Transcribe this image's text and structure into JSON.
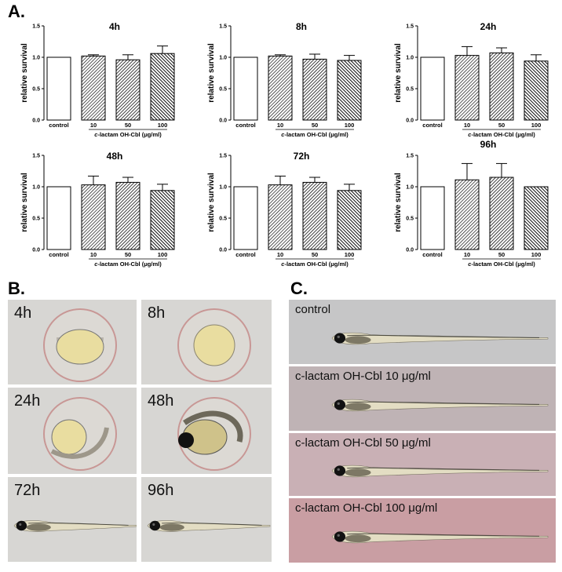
{
  "panels": {
    "a": "A.",
    "b": "B.",
    "c": "C."
  },
  "chart_data": [
    {
      "type": "bar",
      "title": "4h",
      "categories": [
        "control",
        "10",
        "50",
        "100"
      ],
      "values": [
        1.0,
        1.02,
        0.96,
        1.06
      ],
      "errors": [
        0,
        0.02,
        0.08,
        0.12
      ],
      "ylabel": "relative survival",
      "xlabel": "c-lactam OH-Cbl (μg/ml)",
      "xlabel_prefix": "c",
      "xlabel_rest": "-lactam OH-Cbl (μg/ml)",
      "ylim": [
        0.0,
        1.5
      ],
      "yticks": [
        "0.0",
        "0.5",
        "1.0",
        "1.5"
      ]
    },
    {
      "type": "bar",
      "title": "8h",
      "categories": [
        "control",
        "10",
        "50",
        "100"
      ],
      "values": [
        1.0,
        1.02,
        0.97,
        0.95
      ],
      "errors": [
        0,
        0.02,
        0.08,
        0.08
      ],
      "ylabel": "relative survival",
      "xlabel": "c-lactam OH-Cbl (μg/ml)",
      "xlabel_prefix": "c",
      "xlabel_rest": "-lactam OH-Cbl (μg/ml)",
      "ylim": [
        0.0,
        1.5
      ],
      "yticks": [
        "0.0",
        "0.5",
        "1.0",
        "1.5"
      ]
    },
    {
      "type": "bar",
      "title": "24h",
      "categories": [
        "control",
        "10",
        "50",
        "100"
      ],
      "values": [
        1.0,
        1.03,
        1.07,
        0.94
      ],
      "errors": [
        0,
        0.14,
        0.08,
        0.1
      ],
      "ylabel": "relative survival",
      "xlabel": "c-lactam OH-Cbl (μg/ml)",
      "xlabel_prefix": "c",
      "xlabel_rest": "-lactam OH-Cbl (μg/ml)",
      "ylim": [
        0.0,
        1.5
      ],
      "yticks": [
        "0.0",
        "0.5",
        "1.0",
        "1.5"
      ]
    },
    {
      "type": "bar",
      "title": "48h",
      "categories": [
        "control",
        "10",
        "50",
        "100"
      ],
      "values": [
        1.0,
        1.03,
        1.07,
        0.94
      ],
      "errors": [
        0,
        0.14,
        0.08,
        0.1
      ],
      "ylabel": "relative survival",
      "xlabel": "c-lactam OH-Cbl (μg/ml)",
      "xlabel_prefix": "c",
      "xlabel_rest": "-lactam OH-Cbl (μg/ml)",
      "ylim": [
        0.0,
        1.5
      ],
      "yticks": [
        "0.0",
        "0.5",
        "1.0",
        "1.5"
      ]
    },
    {
      "type": "bar",
      "title": "72h",
      "categories": [
        "control",
        "10",
        "50",
        "100"
      ],
      "values": [
        1.0,
        1.03,
        1.07,
        0.94
      ],
      "errors": [
        0,
        0.14,
        0.08,
        0.1
      ],
      "ylabel": "relative survival",
      "xlabel": "c-lactam OH-Cbl (μg/ml)",
      "xlabel_prefix": "c",
      "xlabel_rest": "-lactam OH-Cbl (μg/ml)",
      "ylim": [
        0.0,
        1.5
      ],
      "yticks": [
        "0.0",
        "0.5",
        "1.0",
        "1.5"
      ]
    },
    {
      "type": "bar",
      "title": "96h",
      "categories": [
        "control",
        "10",
        "50",
        "100"
      ],
      "values": [
        1.0,
        1.11,
        1.15,
        1.0
      ],
      "errors": [
        0,
        0.26,
        0.22,
        0
      ],
      "ylabel": "relative survival",
      "xlabel": "c-lactam OH-Cbl (μg/ml)",
      "xlabel_prefix": "c",
      "xlabel_rest": "-lactam OH-Cbl (μg/ml)",
      "ylim": [
        0.0,
        1.5
      ],
      "yticks": [
        "0.0",
        "0.5",
        "1.0",
        "1.5"
      ]
    }
  ],
  "embryo_photos": [
    {
      "label": "4h",
      "stage": "egg",
      "yolk": "top"
    },
    {
      "label": "8h",
      "stage": "egg",
      "yolk": "center"
    },
    {
      "label": "24h",
      "stage": "egg",
      "yolk": "left"
    },
    {
      "label": "48h",
      "stage": "hatching",
      "yolk": "center"
    },
    {
      "label": "72h",
      "stage": "larva",
      "yolk": ""
    },
    {
      "label": "96h",
      "stage": "larva",
      "yolk": ""
    }
  ],
  "larva_photos": [
    {
      "label": "control",
      "bg": "#c6c6c7"
    },
    {
      "label": "c-lactam OH-Cbl 10 μg/ml",
      "bg": "#bfb3b5"
    },
    {
      "label": "c-lactam OH-Cbl 50 μg/ml",
      "bg": "#c9b0b5"
    },
    {
      "label": "c-lactam OH-Cbl 100 μg/ml",
      "bg": "#c99ea3"
    }
  ],
  "colors": {
    "bar_stroke": "#000000",
    "hatch_light": "#ffffff",
    "hatch_dark": "#000000",
    "egg_bg": "#d7d6d3",
    "yolk": "#e9dda0",
    "chorion": "#c89795"
  }
}
